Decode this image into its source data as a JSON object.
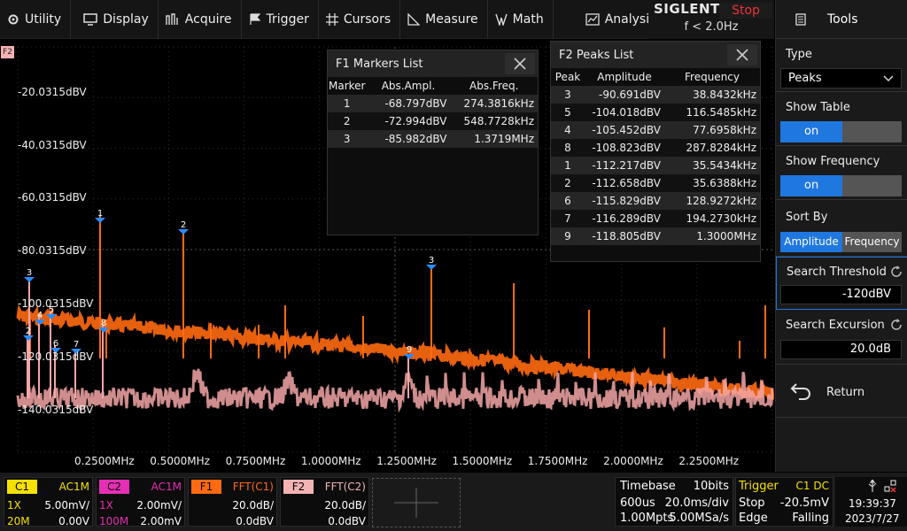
{
  "menu": [
    "Utility",
    "Display",
    "Acquire",
    "Trigger",
    "Cursors",
    "Measure",
    "Math",
    "Analysis"
  ],
  "brand": {
    "logo": "SIGLENT",
    "run_state": "Stop",
    "trigger_freq": "f < 2.0Hz"
  },
  "plot": {
    "f2_badge": "F2",
    "y_labels": [
      "-20.0315dBV",
      "-40.0315dBV",
      "-60.0315dBV",
      "-80.0315dBV",
      "-100.0315dBV",
      "-120.0315dBV",
      "-140.0315dBV"
    ],
    "x_labels": [
      "0.2500MHz",
      "0.5000MHz",
      "0.7500MHz",
      "1.0000MHz",
      "1.2500MHz",
      "1.5000MHz",
      "1.7500MHz",
      "2.0000MHz",
      "2.2500MHz"
    ],
    "f1_markers": [
      "1",
      "2",
      "3"
    ],
    "f2_peaks": [
      "3",
      "4",
      "5",
      "2",
      "8",
      "6",
      "7",
      "9"
    ],
    "colors": {
      "f1": "#ff6a10",
      "f2": "#f4a6a6",
      "marker": "#2a8cff"
    }
  },
  "markers_panel": {
    "title": "F1 Markers List",
    "headers": [
      "Marker",
      "Abs.Ampl.",
      "Abs.Freq."
    ],
    "rows": [
      [
        "1",
        "-68.797dBV",
        "274.3816kHz"
      ],
      [
        "2",
        "-72.994dBV",
        "548.7728kHz"
      ],
      [
        "3",
        "-85.982dBV",
        "1.3719MHz"
      ]
    ]
  },
  "peaks_panel": {
    "title": "F2 Peaks List",
    "headers": [
      "Peak",
      "Amplitude",
      "Frequency"
    ],
    "rows": [
      [
        "3",
        "-90.691dBV",
        "38.8432kHz"
      ],
      [
        "5",
        "-104.018dBV",
        "116.5485kHz"
      ],
      [
        "4",
        "-105.452dBV",
        "77.6958kHz"
      ],
      [
        "8",
        "-108.823dBV",
        "287.8284kHz"
      ],
      [
        "1",
        "-112.217dBV",
        "35.5434kHz"
      ],
      [
        "2",
        "-112.658dBV",
        "35.6388kHz"
      ],
      [
        "6",
        "-115.829dBV",
        "128.9272kHz"
      ],
      [
        "7",
        "-116.289dBV",
        "194.2730kHz"
      ],
      [
        "9",
        "-118.805dBV",
        "1.3000MHz"
      ]
    ]
  },
  "right_panel": {
    "title": "Tools",
    "type_label": "Type",
    "type_value": "Peaks",
    "show_table_label": "Show Table",
    "show_table_value": "on",
    "show_freq_label": "Show Frequency",
    "show_freq_value": "on",
    "sort_by_label": "Sort By",
    "sort_options": [
      "Amplitude",
      "Frequency"
    ],
    "threshold_label": "Search Threshold",
    "threshold_value": "-120dBV",
    "excursion_label": "Search Excursion",
    "excursion_value": "20.0dB",
    "return_label": "Return"
  },
  "channels": {
    "c1": {
      "tag": "C1",
      "coupling": "AC1M",
      "probe": "1X",
      "scale": "5.00mV/",
      "bw": "20M",
      "offset": "0.00V",
      "color": "#f5e100"
    },
    "c2": {
      "tag": "C2",
      "coupling": "AC1M",
      "probe": "1X",
      "scale": "2.00mV/",
      "bw": "100M",
      "offset": "2.00mV",
      "color": "#e62fb4"
    },
    "f1": {
      "tag": "F1",
      "source": "FFT(C1)",
      "scale": "20.0dB/",
      "offset": "0.0dBV",
      "color": "#ff6a10"
    },
    "f2": {
      "tag": "F2",
      "source": "FFT(C2)",
      "scale": "20.0dB/",
      "offset": "0.0dBV",
      "color": "#f4b3b3"
    }
  },
  "timebase": {
    "label": "Timebase",
    "bits": "10bits",
    "delay": "600us",
    "scale": "20.0ms/div",
    "points": "1.00Mpts",
    "rate": "5.00MSa/s"
  },
  "trigger": {
    "label": "Trigger",
    "source": "C1 DC",
    "state": "Stop",
    "level": "-20.5mV",
    "type": "Edge",
    "slope": "Falling"
  },
  "clock": {
    "time": "19:39:37",
    "date": "2023/7/27"
  }
}
